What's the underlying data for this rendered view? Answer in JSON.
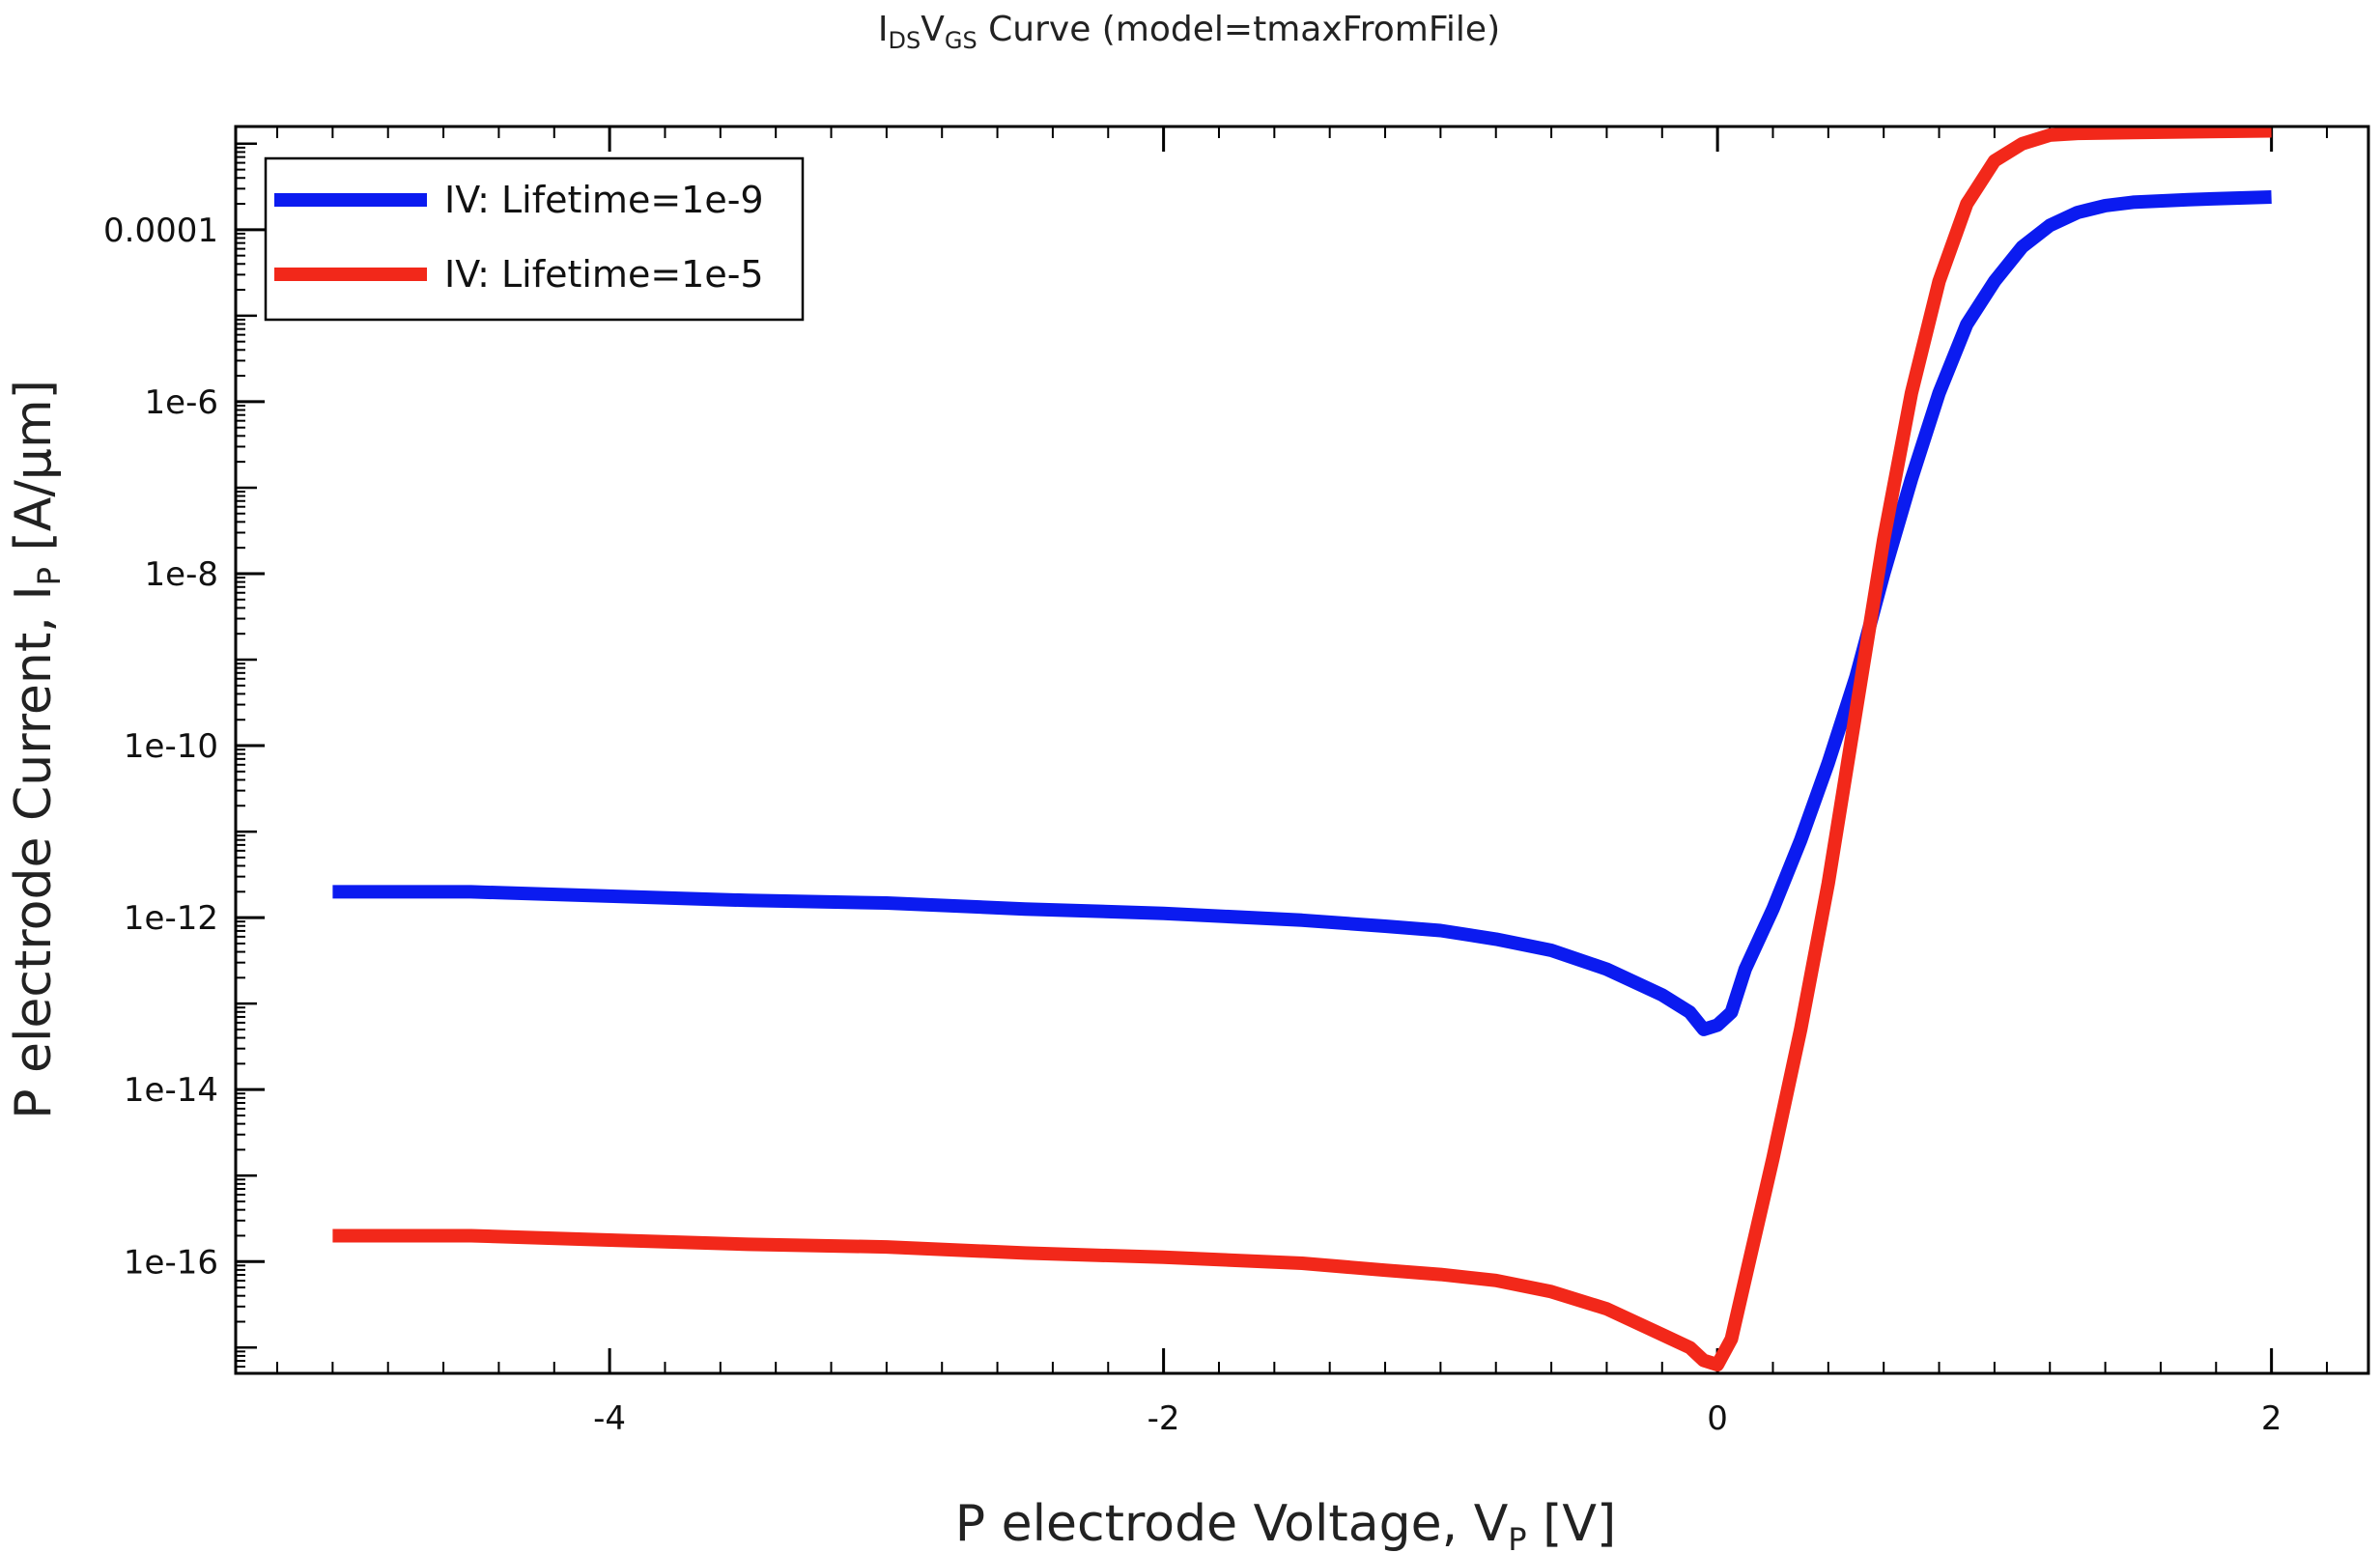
{
  "chart_data": {
    "type": "line",
    "title": {
      "i": "I",
      "i_sub": "DS",
      "v": "V",
      "v_sub": "GS",
      "rest": " Curve (model=tmaxFromFile)"
    },
    "xlabel": {
      "main": "P electrode Voltage, V",
      "sub": "P",
      "unit": " [V]"
    },
    "ylabel": {
      "main": "P electrode Current, I",
      "sub": "P",
      "unit": " [A/µm]"
    },
    "xlim": [
      -5.35,
      2.35
    ],
    "ylog10_lim": [
      -17.3,
      -2.8
    ],
    "y_scale": "log",
    "x_ticks": [
      {
        "value": -4,
        "label": "-4"
      },
      {
        "value": -2,
        "label": "-2"
      },
      {
        "value": 0,
        "label": "0"
      },
      {
        "value": 2,
        "label": "2"
      }
    ],
    "y_ticks": [
      {
        "log10": -4,
        "label": "0.0001"
      },
      {
        "log10": -6,
        "label": "1e-6"
      },
      {
        "log10": -8,
        "label": "1e-8"
      },
      {
        "log10": -10,
        "label": "1e-10"
      },
      {
        "log10": -12,
        "label": "1e-12"
      },
      {
        "log10": -14,
        "label": "1e-14"
      },
      {
        "log10": -16,
        "label": "1e-16"
      }
    ],
    "legend_position": "top-left",
    "series": [
      {
        "name": "IV: Lifetime=1e-9",
        "color": "#0b1bf0",
        "x": [
          -5.0,
          -4.5,
          -4.0,
          -3.5,
          -3.0,
          -2.5,
          -2.0,
          -1.5,
          -1.2,
          -1.0,
          -0.8,
          -0.6,
          -0.4,
          -0.2,
          -0.1,
          -0.05,
          0.0,
          0.05,
          0.1,
          0.2,
          0.3,
          0.4,
          0.5,
          0.6,
          0.7,
          0.8,
          0.9,
          1.0,
          1.1,
          1.2,
          1.3,
          1.4,
          1.5,
          1.7,
          2.0
        ],
        "log10_y": [
          -11.7,
          -11.7,
          -11.75,
          -11.8,
          -11.83,
          -11.9,
          -11.95,
          -12.03,
          -12.1,
          -12.15,
          -12.25,
          -12.38,
          -12.6,
          -12.9,
          -13.1,
          -13.3,
          -13.25,
          -13.1,
          -12.6,
          -11.9,
          -11.1,
          -10.2,
          -9.2,
          -8.0,
          -6.9,
          -5.9,
          -5.1,
          -4.6,
          -4.2,
          -3.95,
          -3.8,
          -3.72,
          -3.68,
          -3.65,
          -3.62
        ]
      },
      {
        "name": "IV: Lifetime=1e-5",
        "color": "#f2281a",
        "x": [
          -5.0,
          -4.5,
          -4.0,
          -3.5,
          -3.0,
          -2.5,
          -2.0,
          -1.5,
          -1.2,
          -1.0,
          -0.8,
          -0.6,
          -0.4,
          -0.2,
          -0.1,
          -0.05,
          0.0,
          0.05,
          0.1,
          0.2,
          0.3,
          0.4,
          0.5,
          0.6,
          0.7,
          0.8,
          0.9,
          1.0,
          1.1,
          1.2,
          1.3,
          1.5,
          2.0
        ],
        "log10_y": [
          -15.7,
          -15.7,
          -15.75,
          -15.8,
          -15.83,
          -15.9,
          -15.95,
          -16.02,
          -16.1,
          -16.15,
          -16.22,
          -16.35,
          -16.55,
          -16.85,
          -17.0,
          -17.15,
          -17.2,
          -16.9,
          -16.2,
          -14.8,
          -13.3,
          -11.6,
          -9.6,
          -7.6,
          -5.9,
          -4.6,
          -3.7,
          -3.2,
          -3.0,
          -2.9,
          -2.88,
          -2.87,
          -2.85
        ]
      }
    ]
  }
}
